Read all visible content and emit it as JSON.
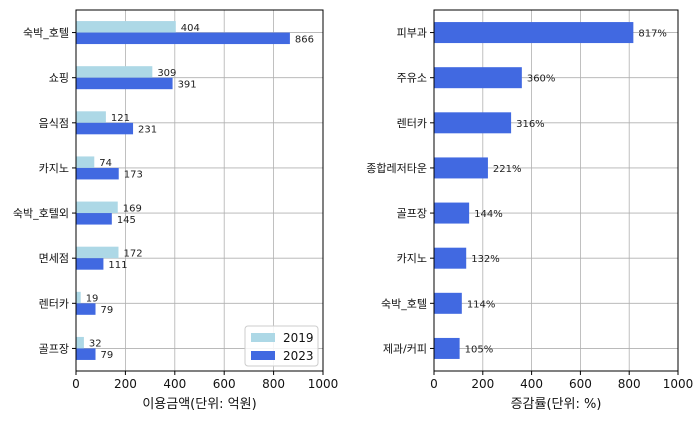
{
  "chart_data": [
    {
      "type": "bar",
      "orientation": "horizontal",
      "categories": [
        "숙박_호텔",
        "쇼핑",
        "음식점",
        "카지노",
        "숙박_호텔외",
        "면세점",
        "렌터카",
        "골프장"
      ],
      "series": [
        {
          "name": "2019",
          "color": "#add8e6",
          "values": [
            404,
            309,
            121,
            74,
            169,
            172,
            19,
            32
          ]
        },
        {
          "name": "2023",
          "color": "#4169e1",
          "values": [
            866,
            391,
            231,
            173,
            145,
            111,
            79,
            79
          ]
        }
      ],
      "value_labels": [
        [
          "404",
          "309",
          "121",
          "74",
          "169",
          "172",
          "19",
          "32"
        ],
        [
          "866",
          "391",
          "231",
          "173",
          "145",
          "111",
          "79",
          "79"
        ]
      ],
      "xlabel": "이용금액(단위: 억원)",
      "xlim": [
        0,
        1000
      ],
      "xticks": [
        0,
        200,
        400,
        600,
        800,
        1000
      ],
      "xtick_labels": [
        "0",
        "200",
        "400",
        "600",
        "800",
        "1000"
      ],
      "grid": true,
      "legend": "bottom-right"
    },
    {
      "type": "bar",
      "orientation": "horizontal",
      "categories": [
        "피부과",
        "주유소",
        "렌터카",
        "종합레저타운",
        "골프장",
        "카지노",
        "숙박_호텔",
        "제과/커피"
      ],
      "series": [
        {
          "color": "#4169e1",
          "values": [
            817,
            360,
            316,
            221,
            144,
            132,
            114,
            105
          ]
        }
      ],
      "value_labels": [
        [
          "817%",
          "360%",
          "316%",
          "221%",
          "144%",
          "132%",
          "114%",
          "105%"
        ]
      ],
      "xlabel": "증감률(단위: %)",
      "xlim": [
        0,
        1000
      ],
      "xticks": [
        0,
        200,
        400,
        600,
        800,
        1000
      ],
      "xtick_labels": [
        "0",
        "200",
        "400",
        "600",
        "800",
        "1000"
      ],
      "grid": true
    }
  ]
}
